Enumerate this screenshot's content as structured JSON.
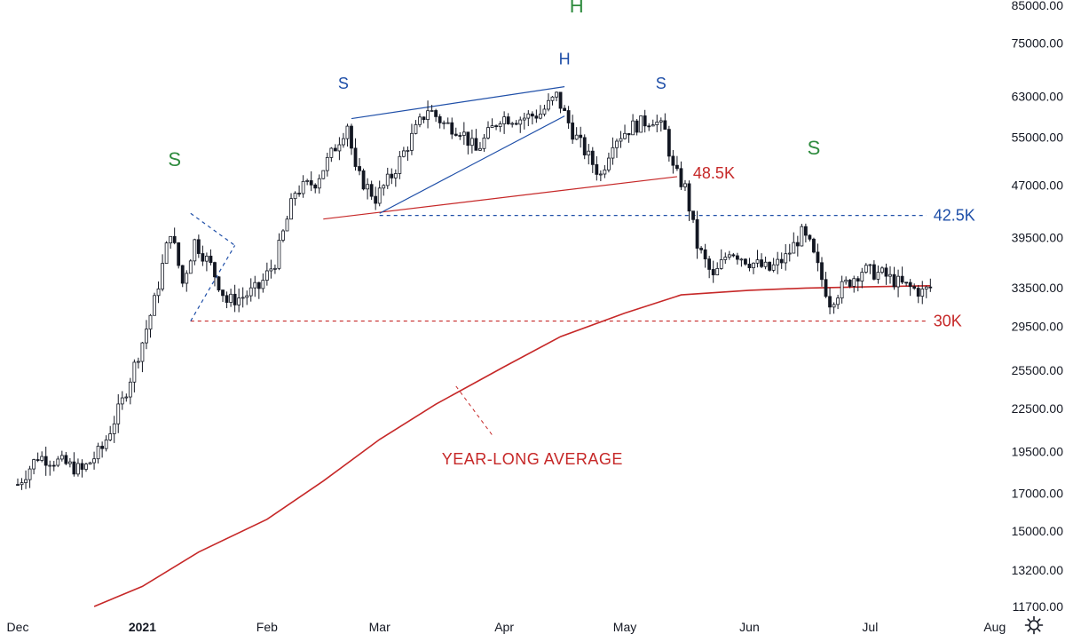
{
  "chart_data": {
    "type": "candlestick",
    "y_scale": "log",
    "ylim": [
      11700,
      85000
    ],
    "y_ticks": [
      "85000.00",
      "75000.00",
      "63000.00",
      "55000.00",
      "47000.00",
      "39500.00",
      "33500.00",
      "29500.00",
      "25500.00",
      "22500.00",
      "19500.00",
      "17000.00",
      "15000.00",
      "13200.00",
      "11700.00"
    ],
    "x_ticks": [
      "Dec",
      "2021",
      "Feb",
      "Mar",
      "Apr",
      "May",
      "Jun",
      "Jul",
      "Aug"
    ],
    "x_tick_dates": [
      "2020-12-01",
      "2021-01-01",
      "2021-02-01",
      "2021-03-01",
      "2021-04-01",
      "2021-05-01",
      "2021-06-01",
      "2021-07-01",
      "2021-08-01"
    ],
    "price_anchors": [
      {
        "date": "2020-12-01",
        "close": 17500
      },
      {
        "date": "2020-12-06",
        "close": 19200
      },
      {
        "date": "2020-12-12",
        "close": 18800
      },
      {
        "date": "2020-12-17",
        "close": 18300
      },
      {
        "date": "2020-12-22",
        "close": 19700
      },
      {
        "date": "2020-12-27",
        "close": 23000
      },
      {
        "date": "2021-01-01",
        "close": 28000
      },
      {
        "date": "2021-01-04",
        "close": 32000
      },
      {
        "date": "2021-01-08",
        "close": 40500
      },
      {
        "date": "2021-01-11",
        "close": 34000
      },
      {
        "date": "2021-01-14",
        "close": 39000
      },
      {
        "date": "2021-01-18",
        "close": 36000
      },
      {
        "date": "2021-01-22",
        "close": 32000
      },
      {
        "date": "2021-01-26",
        "close": 32500
      },
      {
        "date": "2021-01-30",
        "close": 33500
      },
      {
        "date": "2021-02-03",
        "close": 36500
      },
      {
        "date": "2021-02-08",
        "close": 46000
      },
      {
        "date": "2021-02-13",
        "close": 47500
      },
      {
        "date": "2021-02-17",
        "close": 52000
      },
      {
        "date": "2021-02-21",
        "close": 57500
      },
      {
        "date": "2021-02-23",
        "close": 49000
      },
      {
        "date": "2021-02-28",
        "close": 45000
      },
      {
        "date": "2021-03-04",
        "close": 48500
      },
      {
        "date": "2021-03-09",
        "close": 55000
      },
      {
        "date": "2021-03-13",
        "close": 60500
      },
      {
        "date": "2021-03-17",
        "close": 57500
      },
      {
        "date": "2021-03-21",
        "close": 56500
      },
      {
        "date": "2021-03-25",
        "close": 52500
      },
      {
        "date": "2021-03-31",
        "close": 58800
      },
      {
        "date": "2021-04-05",
        "close": 58500
      },
      {
        "date": "2021-04-10",
        "close": 59500
      },
      {
        "date": "2021-04-14",
        "close": 63000
      },
      {
        "date": "2021-04-18",
        "close": 56000
      },
      {
        "date": "2021-04-22",
        "close": 51500
      },
      {
        "date": "2021-04-25",
        "close": 48500
      },
      {
        "date": "2021-04-28",
        "close": 54500
      },
      {
        "date": "2021-05-03",
        "close": 57000
      },
      {
        "date": "2021-05-08",
        "close": 58500
      },
      {
        "date": "2021-05-11",
        "close": 56000
      },
      {
        "date": "2021-05-13",
        "close": 49500
      },
      {
        "date": "2021-05-16",
        "close": 46500
      },
      {
        "date": "2021-05-19",
        "close": 38500
      },
      {
        "date": "2021-05-23",
        "close": 34500
      },
      {
        "date": "2021-05-27",
        "close": 38000
      },
      {
        "date": "2021-06-01",
        "close": 36500
      },
      {
        "date": "2021-06-06",
        "close": 35500
      },
      {
        "date": "2021-06-10",
        "close": 37000
      },
      {
        "date": "2021-06-14",
        "close": 40000
      },
      {
        "date": "2021-06-16",
        "close": 38500
      },
      {
        "date": "2021-06-21",
        "close": 32000
      },
      {
        "date": "2021-06-24",
        "close": 33500
      },
      {
        "date": "2021-06-29",
        "close": 35500
      },
      {
        "date": "2021-07-04",
        "close": 35000
      },
      {
        "date": "2021-07-09",
        "close": 33800
      },
      {
        "date": "2021-07-14",
        "close": 33000
      },
      {
        "date": "2021-07-16",
        "close": 33500
      }
    ],
    "moving_average": {
      "label": "YEAR-LONG AVERAGE",
      "color": "#c62828",
      "points": [
        {
          "date": "2020-12-20",
          "value": 11700
        },
        {
          "date": "2021-01-01",
          "value": 12500
        },
        {
          "date": "2021-01-15",
          "value": 14000
        },
        {
          "date": "2021-02-01",
          "value": 15600
        },
        {
          "date": "2021-02-15",
          "value": 17700
        },
        {
          "date": "2021-03-01",
          "value": 20300
        },
        {
          "date": "2021-03-15",
          "value": 22800
        },
        {
          "date": "2021-04-01",
          "value": 25800
        },
        {
          "date": "2021-04-15",
          "value": 28500
        },
        {
          "date": "2021-05-01",
          "value": 30800
        },
        {
          "date": "2021-05-15",
          "value": 32700
        },
        {
          "date": "2021-06-01",
          "value": 33200
        },
        {
          "date": "2021-06-15",
          "value": 33450
        },
        {
          "date": "2021-07-01",
          "value": 33600
        },
        {
          "date": "2021-07-16",
          "value": 33700
        }
      ]
    },
    "levels": [
      {
        "label": "48.5K",
        "kind": "neckline",
        "color": "#c62828",
        "from": {
          "date": "2021-02-15",
          "value": 42000
        },
        "to": {
          "date": "2021-05-14",
          "value": 48300
        }
      },
      {
        "label": "42.5K",
        "kind": "horizontal",
        "color": "#1f4fa8",
        "from": {
          "date": "2021-03-01",
          "value": 42500
        },
        "to": {
          "date": "2021-07-15",
          "value": 42500
        }
      },
      {
        "label": "30K",
        "kind": "horizontal",
        "color": "#c62828",
        "from": {
          "date": "2021-01-13",
          "value": 30000
        },
        "to": {
          "date": "2021-07-15",
          "value": 30000
        }
      }
    ],
    "trendlines": [
      {
        "color": "#1f4fa8",
        "from": {
          "date": "2021-02-22",
          "value": 58500
        },
        "to": {
          "date": "2021-04-16",
          "value": 65000
        }
      },
      {
        "color": "#1f4fa8",
        "from": {
          "date": "2021-03-01",
          "value": 42800
        },
        "to": {
          "date": "2021-04-16",
          "value": 59000
        }
      },
      {
        "color": "#1f4fa8",
        "dashed": true,
        "from": {
          "date": "2021-01-13",
          "value": 42800
        },
        "to": {
          "date": "2021-01-24",
          "value": 38500
        }
      },
      {
        "color": "#1f4fa8",
        "dashed": true,
        "from": {
          "date": "2021-01-13",
          "value": 30000
        },
        "to": {
          "date": "2021-01-24",
          "value": 38500
        }
      }
    ],
    "pattern_labels": [
      {
        "text": "S",
        "color": "#2e8b3e",
        "date": "2021-01-09",
        "value": 50000,
        "size": "large"
      },
      {
        "text": "H",
        "color": "#2e8b3e",
        "date": "2021-04-19",
        "value": 83000,
        "size": "large"
      },
      {
        "text": "S",
        "color": "#2e8b3e",
        "date": "2021-06-17",
        "value": 52000,
        "size": "large"
      },
      {
        "text": "S",
        "color": "#1f4fa8",
        "date": "2021-02-20",
        "value": 64500,
        "size": "small"
      },
      {
        "text": "H",
        "color": "#1f4fa8",
        "date": "2021-04-16",
        "value": 70000,
        "size": "small"
      },
      {
        "text": "S",
        "color": "#1f4fa8",
        "date": "2021-05-10",
        "value": 64500,
        "size": "small"
      }
    ],
    "colors": {
      "candle": "#131722",
      "background": "#ffffff"
    }
  },
  "toolbar": {
    "settings_icon": "gear-icon"
  }
}
